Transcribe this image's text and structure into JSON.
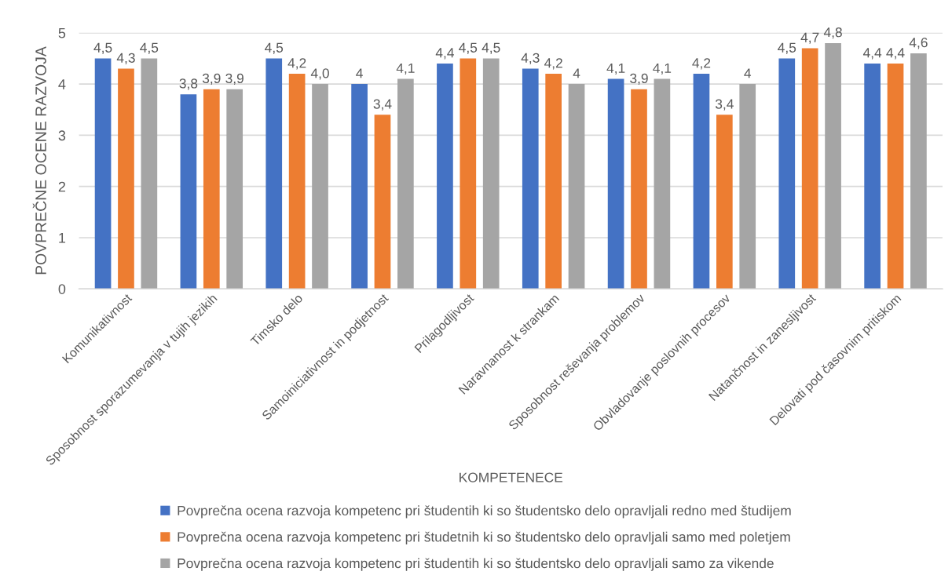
{
  "chart_data": {
    "type": "bar",
    "xlabel": "KOMPETENECE",
    "ylabel": "POVPREČNE OCENE RAZVOJA",
    "categories": [
      "Komunikativnost",
      "Sposobnost sporazumevanja v tujih jezikih",
      "Timsko delo",
      "Samoiniciativnost in podjetnost",
      "Prilagodljivost",
      "Naravnanost k strankam",
      "Sposobnost reševanja problemov",
      "Obvladovanje poslovnih procesov",
      "Natančnost in zanesljivost",
      "Delovati pod časovnim pritiskom"
    ],
    "series": [
      {
        "name": "Povprečna ocena razvoja kompetenc pri študentih ki so študentsko delo opravljali redno med študijem",
        "color": "#4472c4",
        "values": [
          4.5,
          3.8,
          4.5,
          4,
          4.4,
          4.3,
          4.1,
          4.2,
          4.5,
          4.4
        ],
        "value_labels": [
          "4,5",
          "3,8",
          "4,5",
          "4",
          "4,4",
          "4,3",
          "4,1",
          "4,2",
          "4,5",
          "4,4"
        ]
      },
      {
        "name": "Povprečna ocena razvoja kompetenc pri študetnih ki so študentsko delo opravljali samo med poletjem",
        "color": "#ed7d31",
        "values": [
          4.3,
          3.9,
          4.2,
          3.4,
          4.5,
          4.2,
          3.9,
          3.4,
          4.7,
          4.4
        ],
        "value_labels": [
          "4,3",
          "3,9",
          "4,2",
          "3,4",
          "4,5",
          "4,2",
          "3,9",
          "3,4",
          "4,7",
          "4,4"
        ]
      },
      {
        "name": "Povprečna ocena razvoja kompetenc pri študentih ki so študentsko delo opravljali samo za vikende",
        "color": "#a5a5a5",
        "values": [
          4.5,
          3.9,
          4.0,
          4.1,
          4.5,
          4,
          4.1,
          4,
          4.8,
          4.6
        ],
        "value_labels": [
          "4,5",
          "3,9",
          "4,0",
          "4,1",
          "4,5",
          "4",
          "4,1",
          "4",
          "4,8",
          "4,6"
        ]
      }
    ],
    "ylim": [
      0,
      5
    ],
    "yticks": [
      0,
      1,
      2,
      3,
      4,
      5
    ],
    "grid": "y",
    "legend": "bottom"
  }
}
